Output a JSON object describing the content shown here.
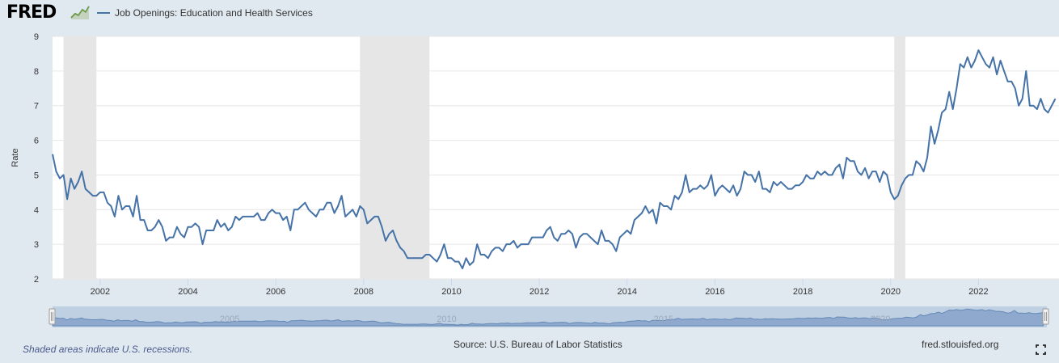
{
  "header": {
    "logo_text": "FRED",
    "logo_icon": "line-chart-icon"
  },
  "legend": {
    "series_name": "Job Openings: Education and Health Services",
    "color": "#4572a7"
  },
  "footer": {
    "note": "Shaded areas indicate U.S. recessions.",
    "source": "Source: U.S. Bureau of Labor Statistics",
    "url": "fred.stlouisfed.org",
    "fullscreen_icon": "fullscreen-icon"
  },
  "colors": {
    "line": "#4572a7",
    "recession": "#e6e6e6",
    "background": "#e1e9f0",
    "plot_bg": "#ffffff",
    "navigator_fill": "#a5bbd9"
  },
  "chart_data": {
    "type": "line",
    "title": "Job Openings: Education and Health Services",
    "xlabel": "",
    "ylabel": "Rate",
    "xlim": [
      2000.917,
      2023.833
    ],
    "ylim": [
      2,
      9
    ],
    "y_ticks": [
      2,
      3,
      4,
      5,
      6,
      7,
      8,
      9
    ],
    "x_ticks": [
      "2002",
      "2004",
      "2006",
      "2008",
      "2010",
      "2012",
      "2014",
      "2016",
      "2018",
      "2020",
      "2022"
    ],
    "navigator_labels": [
      "2005",
      "2010",
      "2015",
      "2020"
    ],
    "grid": true,
    "recessions": [
      [
        "2001-03",
        "2001-11"
      ],
      [
        "2007-12",
        "2009-06"
      ],
      [
        "2020-02",
        "2020-04"
      ]
    ],
    "start": "2000-12",
    "frequency": "monthly",
    "series": [
      {
        "name": "Job Openings: Education and Health Services",
        "values": [
          5.6,
          5.1,
          4.9,
          5.0,
          4.3,
          4.9,
          4.6,
          4.8,
          5.1,
          4.6,
          4.5,
          4.4,
          4.4,
          4.5,
          4.5,
          4.2,
          4.1,
          3.8,
          4.4,
          4.0,
          4.1,
          4.1,
          3.8,
          4.4,
          3.7,
          3.7,
          3.4,
          3.4,
          3.5,
          3.7,
          3.5,
          3.1,
          3.2,
          3.2,
          3.5,
          3.3,
          3.2,
          3.5,
          3.5,
          3.6,
          3.5,
          3.0,
          3.4,
          3.4,
          3.4,
          3.7,
          3.5,
          3.6,
          3.4,
          3.5,
          3.8,
          3.7,
          3.8,
          3.8,
          3.8,
          3.8,
          3.9,
          3.7,
          3.7,
          3.9,
          4.0,
          3.9,
          3.9,
          3.7,
          3.8,
          3.4,
          4.0,
          4.0,
          4.1,
          4.2,
          4.0,
          3.9,
          3.8,
          4.0,
          4.0,
          4.2,
          4.2,
          3.9,
          4.1,
          4.4,
          3.8,
          3.9,
          4.0,
          3.8,
          4.1,
          4.0,
          3.6,
          3.7,
          3.8,
          3.8,
          3.5,
          3.1,
          3.3,
          3.4,
          3.1,
          2.9,
          2.8,
          2.6,
          2.6,
          2.6,
          2.6,
          2.6,
          2.7,
          2.7,
          2.6,
          2.5,
          2.7,
          3.0,
          2.6,
          2.6,
          2.5,
          2.5,
          2.3,
          2.6,
          2.4,
          2.5,
          3.0,
          2.7,
          2.7,
          2.6,
          2.8,
          2.9,
          2.9,
          2.8,
          3.0,
          3.0,
          3.1,
          2.9,
          3.0,
          3.0,
          3.0,
          3.2,
          3.2,
          3.2,
          3.2,
          3.4,
          3.5,
          3.2,
          3.1,
          3.3,
          3.3,
          3.4,
          3.3,
          2.9,
          3.2,
          3.3,
          3.3,
          3.2,
          3.1,
          3.0,
          3.4,
          3.1,
          3.1,
          3.0,
          2.8,
          3.2,
          3.3,
          3.4,
          3.3,
          3.7,
          3.8,
          3.9,
          4.1,
          3.9,
          4.0,
          3.6,
          4.2,
          4.1,
          4.1,
          4.0,
          4.4,
          4.3,
          4.5,
          5.0,
          4.5,
          4.6,
          4.6,
          4.7,
          4.6,
          4.7,
          5.0,
          4.4,
          4.6,
          4.7,
          4.6,
          4.5,
          4.7,
          4.4,
          4.6,
          5.1,
          5.0,
          5.0,
          4.8,
          5.1,
          4.6,
          4.6,
          4.5,
          4.8,
          4.7,
          4.8,
          4.7,
          4.6,
          4.6,
          4.7,
          4.7,
          4.8,
          5.0,
          4.9,
          4.9,
          5.1,
          5.0,
          5.1,
          5.0,
          5.0,
          5.2,
          5.3,
          4.9,
          5.5,
          5.4,
          5.4,
          5.1,
          5.0,
          5.2,
          4.9,
          5.1,
          5.1,
          4.8,
          5.1,
          5.0,
          4.5,
          4.3,
          4.4,
          4.7,
          4.9,
          5.0,
          5.0,
          5.4,
          5.3,
          5.1,
          5.5,
          6.4,
          5.9,
          6.3,
          6.8,
          6.9,
          7.4,
          6.9,
          7.5,
          8.2,
          8.1,
          8.4,
          8.1,
          8.3,
          8.6,
          8.4,
          8.2,
          8.1,
          8.4,
          7.9,
          8.3,
          8.0,
          7.7,
          7.7,
          7.5,
          7.0,
          7.2,
          8.0,
          7.0,
          7.0,
          6.9,
          7.2,
          6.9,
          6.8,
          7.0,
          7.2
        ]
      }
    ]
  }
}
